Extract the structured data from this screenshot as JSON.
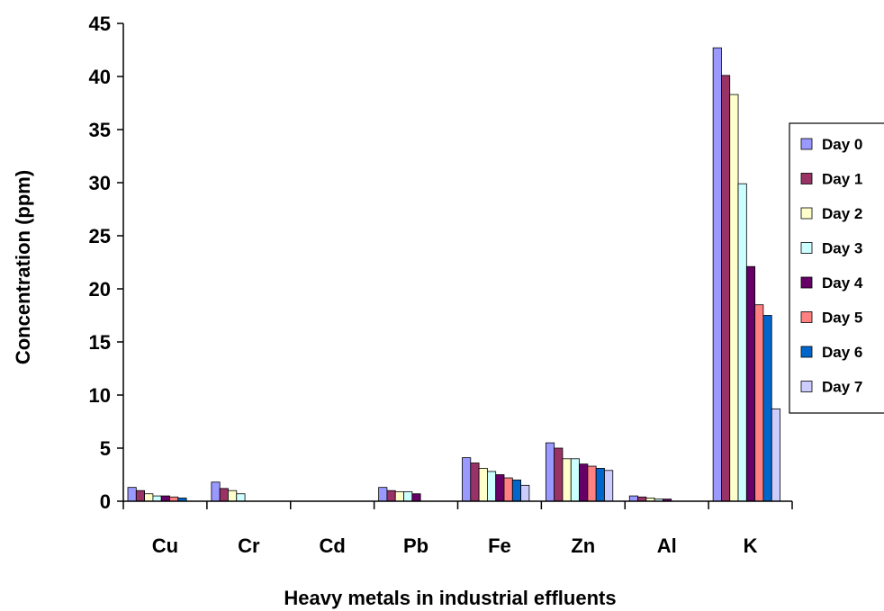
{
  "chart_data": {
    "type": "bar",
    "title": "",
    "xlabel": "Heavy metals in industrial effluents",
    "ylabel": "Concentration (ppm)",
    "ylim": [
      0,
      45
    ],
    "yticks": [
      0,
      5,
      10,
      15,
      20,
      25,
      30,
      35,
      40,
      45
    ],
    "grid": false,
    "legend_position": "right",
    "categories": [
      "Cu",
      "Cr",
      "Cd",
      "Pb",
      "Fe",
      "Zn",
      "Al",
      "K"
    ],
    "series": [
      {
        "name": "Day 0",
        "color": "#9999FF",
        "values": [
          1.3,
          1.8,
          0,
          1.3,
          4.1,
          5.5,
          0.5,
          42.7
        ]
      },
      {
        "name": "Day 1",
        "color": "#993366",
        "values": [
          1.0,
          1.2,
          0,
          1.0,
          3.6,
          5.0,
          0.4,
          40.1
        ]
      },
      {
        "name": "Day 2",
        "color": "#FFFFCC",
        "values": [
          0.7,
          1.0,
          0,
          0.9,
          3.1,
          4.0,
          0.3,
          38.3
        ]
      },
      {
        "name": "Day 3",
        "color": "#CCFFFF",
        "values": [
          0.5,
          0.7,
          0,
          0.9,
          2.8,
          4.0,
          0.2,
          29.9
        ]
      },
      {
        "name": "Day 4",
        "color": "#660066",
        "values": [
          0.5,
          0,
          0,
          0.7,
          2.5,
          3.5,
          0.2,
          22.1
        ]
      },
      {
        "name": "Day 5",
        "color": "#FF8080",
        "values": [
          0.4,
          0,
          0,
          0,
          2.2,
          3.3,
          0,
          18.5
        ]
      },
      {
        "name": "Day 6",
        "color": "#0066CC",
        "values": [
          0.3,
          0,
          0,
          0,
          2.0,
          3.1,
          0,
          17.5
        ]
      },
      {
        "name": "Day 7",
        "color": "#CCCCFF",
        "values": [
          0,
          0,
          0,
          0,
          1.5,
          2.9,
          0,
          8.7
        ]
      }
    ]
  }
}
